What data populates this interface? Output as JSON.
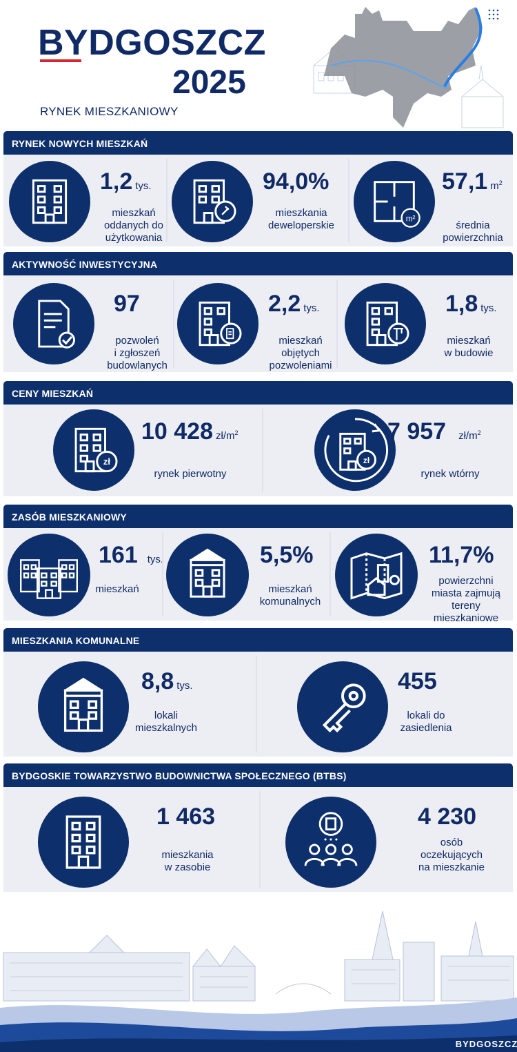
{
  "header": {
    "title": "BYDGOSZCZ",
    "year": "2025",
    "subtitle": "RYNEK MIESZKANIOWY"
  },
  "colors": {
    "navy": "#0d2f6b",
    "accent_red": "#d6262f",
    "panel_bg": "#eceef3"
  },
  "sections": [
    {
      "title": "RYNEK NOWYCH MIESZKAŃ",
      "stats": [
        {
          "icon": "apartment-building-icon",
          "value": "1,2",
          "unit": "tys.",
          "label": "mieszkań\noddanych do\nużytkowania"
        },
        {
          "icon": "building-key-icon",
          "value": "94,0%",
          "unit": "",
          "label": "mieszkania\ndeweloperskie"
        },
        {
          "icon": "floor-plan-icon",
          "value": "57,1",
          "unit": "m",
          "unit_sup": "2",
          "label": "średnia\npowierzchnia"
        }
      ]
    },
    {
      "title": "AKTYWNOŚĆ INWESTYCYJNA",
      "stats": [
        {
          "icon": "document-signed-icon",
          "value": "97",
          "unit": "",
          "label": "pozwoleń\ni zgłoszeń\nbudowlanych"
        },
        {
          "icon": "building-permit-icon",
          "value": "2,2",
          "unit": "tys.",
          "label": "mieszkań\nobjętych\npozwoleniami"
        },
        {
          "icon": "building-crane-icon",
          "value": "1,8",
          "unit": "tys.",
          "label": "mieszkań\nw budowie"
        }
      ]
    },
    {
      "title": "CENY MIESZKAŃ",
      "stats": [
        {
          "icon": "building-price-icon",
          "value": "10 428",
          "unit": "zł/m",
          "unit_sup": "2",
          "label": "rynek pierwotny"
        },
        {
          "icon": "building-price-cycle-icon",
          "value": "7 957",
          "unit": "zł/m",
          "unit_sup": "2",
          "label": "rynek wtórny"
        }
      ]
    },
    {
      "title": "ZASÓB MIESZKANIOWY",
      "stats": [
        {
          "icon": "buildings-group-icon",
          "value": "161",
          "unit": "tys.",
          "label": "mieszkań"
        },
        {
          "icon": "municipal-building-icon",
          "value": "5,5%",
          "unit": "",
          "label": "mieszkań\nkomunalnych"
        },
        {
          "icon": "city-map-icon",
          "value": "11,7%",
          "unit": "",
          "label": "powierzchni\nmiasta zajmują\ntereny\nmieszkaniowe"
        }
      ]
    },
    {
      "title": "MIESZKANIA KOMUNALNE",
      "stats": [
        {
          "icon": "municipal-building-icon",
          "value": "8,8",
          "unit": "tys.",
          "label": "lokali\nmieszkalnych"
        },
        {
          "icon": "key-icon",
          "value": "455",
          "unit": "",
          "label": "lokali do\nzasiedlenia"
        }
      ]
    },
    {
      "title": "BYDGOSKIE TOWARZYSTWO BUDOWNICTWA SPOŁECZNEGO (BTBS)",
      "stats": [
        {
          "icon": "apartment-building-icon",
          "value": "1 463",
          "unit": "",
          "label": "mieszkania\nw zasobie"
        },
        {
          "icon": "people-waiting-icon",
          "value": "4 230",
          "unit": "",
          "label": "osób\noczekujących\nna mieszkanie"
        }
      ]
    }
  ],
  "footer": {
    "logo_text": "BYDGOSZCZ"
  }
}
